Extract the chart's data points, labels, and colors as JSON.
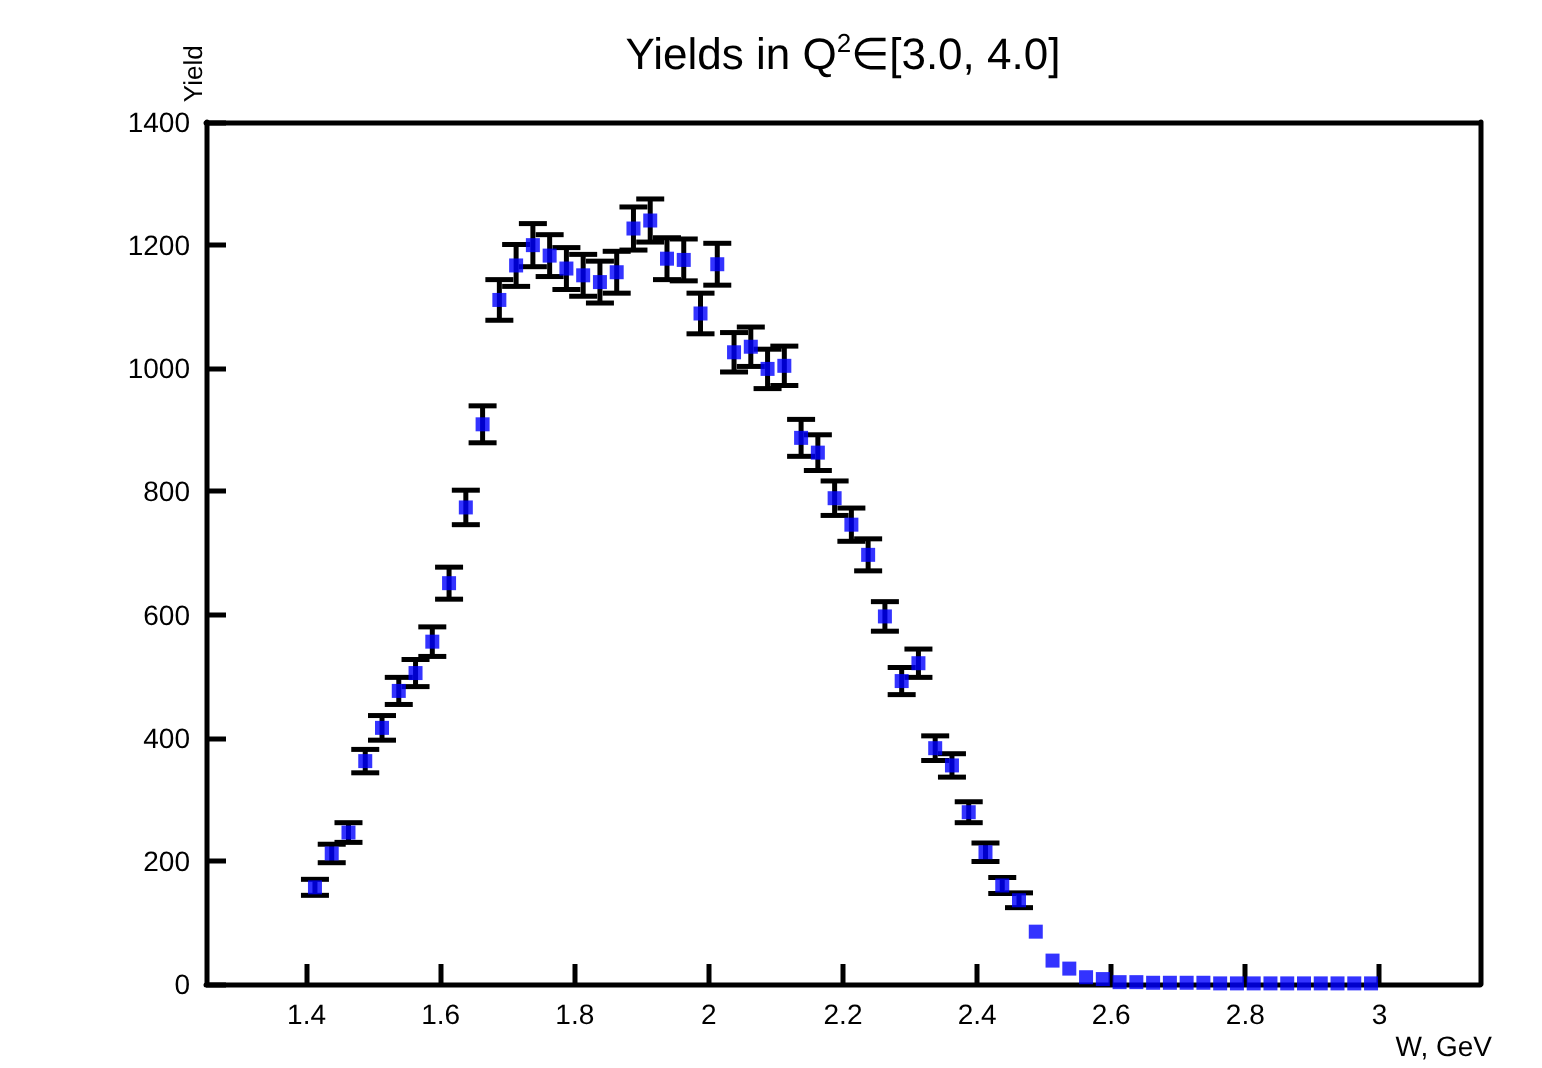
{
  "chart_data": {
    "type": "scatter",
    "title": "Yields in Q$^{2}$∈[3.0, 4.0]",
    "xlabel": "W, GeV",
    "ylabel": "Yield",
    "x": [
      1.4125,
      1.4375,
      1.4625,
      1.4875,
      1.5125,
      1.5375,
      1.5625,
      1.5875,
      1.6125,
      1.6375,
      1.6625,
      1.6875,
      1.7125,
      1.7375,
      1.7625,
      1.7875,
      1.8125,
      1.8375,
      1.8625,
      1.8875,
      1.9125,
      1.9375,
      1.9625,
      1.9875,
      2.0125,
      2.0375,
      2.0625,
      2.0875,
      2.1125,
      2.1375,
      2.1625,
      2.1875,
      2.2125,
      2.2375,
      2.2625,
      2.2875,
      2.3125,
      2.3375,
      2.3625,
      2.3875,
      2.4125,
      2.4375,
      2.4625,
      2.4875,
      2.5125,
      2.5375,
      2.5625,
      2.5875,
      2.6125,
      2.6375,
      2.6625,
      2.6875,
      2.7125,
      2.7375,
      2.7625,
      2.7875,
      2.8125,
      2.8375,
      2.8625,
      2.8875,
      2.9125,
      2.9375,
      2.9625,
      2.9875
    ],
    "series": [
      {
        "color": "#0000ff",
        "values": [
          157,
          212,
          246,
          362,
          416,
          476,
          505,
          556,
          651,
          774,
          909,
          1111,
          1167,
          1200,
          1183,
          1162,
          1151,
          1140,
          1156,
          1227,
          1240,
          1178,
          1176,
          1089,
          1169,
          1026,
          1035,
          999,
          1004,
          887,
          863,
          789,
          746,
          697,
          597,
          492,
          521,
          383,
          355,
          279,
          214,
          160,
          136,
          85,
          38,
          25,
          11,
          8,
          3,
          3,
          2,
          2,
          2,
          2,
          1,
          1,
          1,
          1,
          1,
          1,
          1,
          1,
          1,
          1
        ],
        "errors": [
          13,
          15,
          16,
          19,
          20,
          22,
          22,
          24,
          26,
          28,
          30,
          33,
          34,
          35,
          34,
          34,
          34,
          34,
          34,
          35,
          35,
          34,
          34,
          33,
          34,
          32,
          32,
          32,
          32,
          30,
          29,
          28,
          27,
          26,
          24,
          22,
          23,
          20,
          19,
          17,
          15,
          13,
          12,
          null,
          null,
          null,
          null,
          null,
          null,
          null,
          null,
          null,
          null,
          null,
          null,
          null,
          null,
          null,
          null,
          null,
          null,
          null,
          null,
          null
        ]
      }
    ],
    "xlim": [
      1.25,
      3.15
    ],
    "xticks": [
      1.4,
      1.6,
      1.8,
      2,
      2.2,
      2.4,
      2.6,
      2.8,
      3
    ],
    "ylim": [
      0,
      1400
    ],
    "yticks": [
      0,
      200,
      400,
      600,
      800,
      1000,
      1200,
      1400
    ],
    "marker": "square",
    "grid": false
  }
}
